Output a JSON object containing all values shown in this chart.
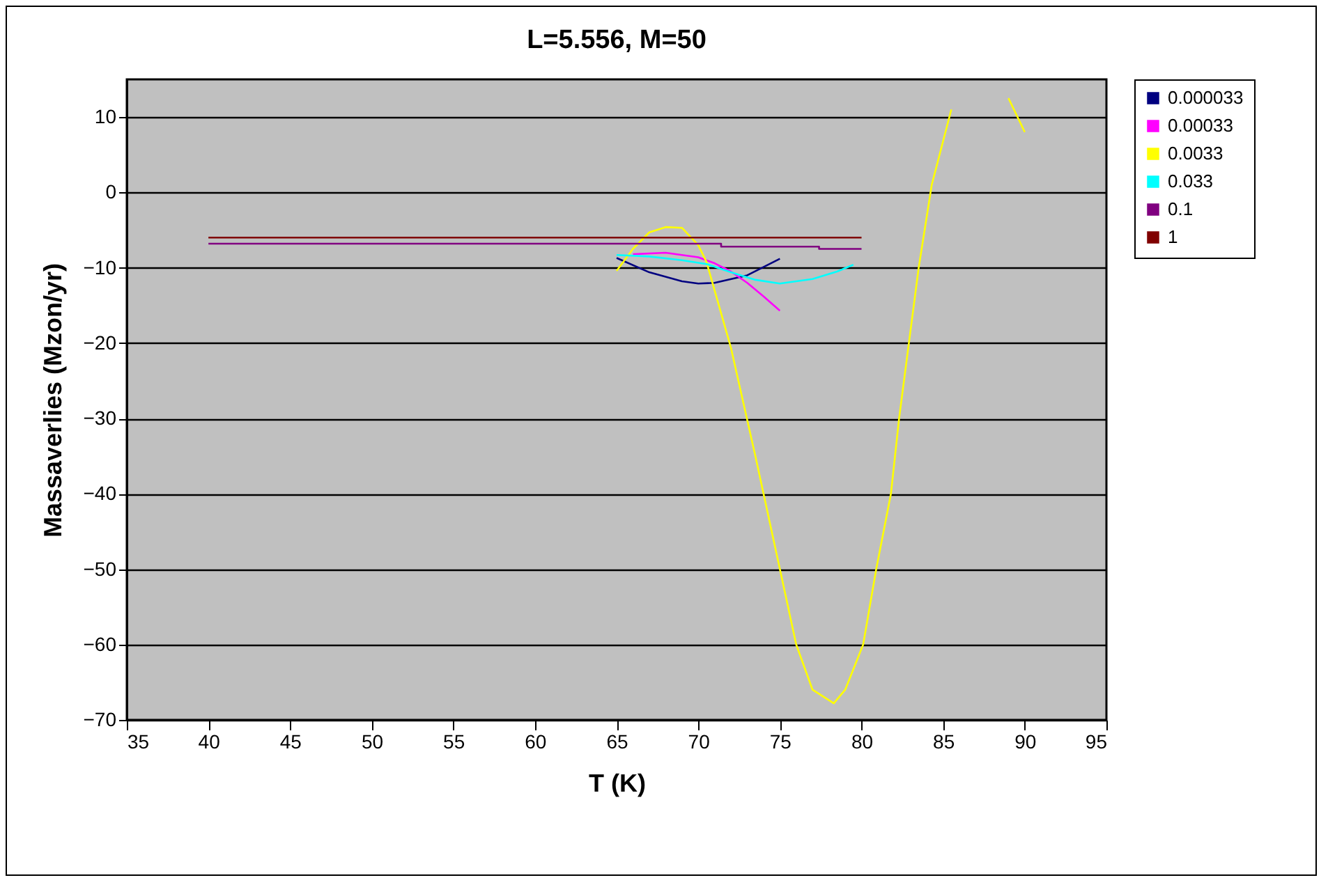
{
  "chart_data": {
    "type": "line",
    "title": "L=5.556, M=50",
    "xlabel": "T (K)",
    "ylabel": "Massaverlies (Mzon/yr)",
    "xlim": [
      35,
      95
    ],
    "xticks": [
      35,
      40,
      45,
      50,
      55,
      60,
      65,
      70,
      75,
      80,
      85,
      90,
      95
    ],
    "ylim": [
      -70,
      15
    ],
    "yticks": [
      -70,
      -60,
      -50,
      -40,
      -30,
      -20,
      -10,
      0,
      10
    ],
    "grid": "y",
    "legend": "right",
    "marker": "none",
    "line_style": "solid",
    "series": [
      {
        "name": "0.000033",
        "color": "#000080",
        "x": [
          65,
          67,
          69,
          70,
          71,
          73,
          75
        ],
        "values": [
          -8.7,
          -10.6,
          -11.8,
          -12.1,
          -12,
          -11,
          -8.8
        ]
      },
      {
        "name": "0.00033",
        "color": "#ff00ff",
        "x": [
          66,
          68,
          70,
          71,
          72,
          73,
          74,
          75
        ],
        "values": [
          -8.2,
          -8,
          -8.6,
          -9.4,
          -10.5,
          -12,
          -13.8,
          -15.7
        ]
      },
      {
        "name": "0.0033",
        "color": "#ffff00",
        "x": [
          65,
          66,
          67,
          68,
          69,
          70,
          70.5,
          72,
          73.5,
          75,
          76,
          77,
          78.3,
          79,
          80.1,
          80.9,
          81.8,
          82.3,
          82.9,
          83.5,
          84.3,
          85.5,
          86.3,
          88.4,
          89,
          90
        ],
        "values": [
          -10.4,
          -7.5,
          -5.3,
          -4.6,
          -4.7,
          -7,
          -9.2,
          -20.6,
          -35,
          -50,
          -60,
          -66,
          -67.8,
          -66,
          -60,
          -50,
          -40,
          -30,
          -20,
          -10,
          1,
          11,
          null,
          null,
          12.5,
          8
        ]
      },
      {
        "name": "0.033",
        "color": "#00ffff",
        "x": [
          65,
          67,
          69,
          70.5,
          72,
          73.5,
          75,
          77,
          78.5,
          79.5
        ],
        "values": [
          -8.3,
          -8.5,
          -9,
          -9.5,
          -10.6,
          -11.6,
          -12.1,
          -11.5,
          -10.5,
          -9.6
        ]
      },
      {
        "name": "0.1",
        "color": "#800080",
        "x": [
          40,
          71.4,
          71.4,
          77.4,
          77.4,
          80
        ],
        "values": [
          -6.8,
          -6.8,
          -7.2,
          -7.2,
          -7.5,
          -7.5
        ]
      },
      {
        "name": "1",
        "color": "#800000",
        "x": [
          40,
          80
        ],
        "values": [
          -6,
          -6
        ]
      }
    ]
  }
}
